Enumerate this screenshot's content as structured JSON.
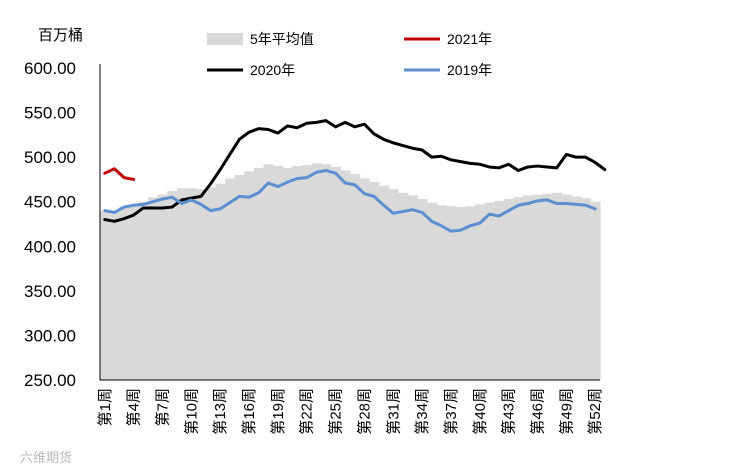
{
  "chart_data": {
    "type": "line",
    "unit_label": "百万桶",
    "ylim": [
      250,
      600
    ],
    "yticks": [
      "250.00",
      "300.00",
      "350.00",
      "400.00",
      "450.00",
      "500.00",
      "550.00",
      "600.00"
    ],
    "x_tick_labels": [
      "第1周",
      "第4周",
      "第7周",
      "第10周",
      "第13周",
      "第16周",
      "第19周",
      "第22周",
      "第25周",
      "第28周",
      "第31周",
      "第34周",
      "第37周",
      "第40周",
      "第43周",
      "第46周",
      "第49周",
      "第52周"
    ],
    "weeks": 52,
    "colors": {
      "avg5": "#d9d9d9",
      "y2021": "#c00000",
      "y2020": "#000000",
      "y2019": "#5b8fd1"
    },
    "series": [
      {
        "key": "avg5",
        "name": "5年平均值",
        "kind": "area",
        "values": [
          440,
          438,
          444,
          446,
          450,
          455,
          458,
          462,
          465,
          465,
          464,
          466,
          470,
          476,
          480,
          484,
          488,
          492,
          490,
          488,
          490,
          491,
          493,
          492,
          489,
          485,
          481,
          476,
          472,
          468,
          464,
          460,
          457,
          453,
          449,
          446,
          445,
          444,
          445,
          447,
          449,
          451,
          453,
          455,
          457,
          458,
          459,
          460,
          458,
          456,
          454,
          450
        ]
      },
      {
        "key": "y2021",
        "name": "2021年",
        "kind": "line",
        "values": [
          482,
          487,
          477,
          475
        ]
      },
      {
        "key": "y2020",
        "name": "2020年",
        "kind": "line",
        "values": [
          430,
          428,
          431,
          435,
          443,
          443,
          443,
          444,
          452,
          454,
          456,
          470,
          486,
          503,
          520,
          528,
          532,
          531,
          527,
          535,
          533,
          538,
          539,
          541,
          534,
          539,
          534,
          537,
          526,
          520,
          516,
          513,
          510,
          508,
          500,
          501,
          497,
          495,
          493,
          492,
          489,
          488,
          492,
          485,
          489,
          490,
          489,
          488,
          503,
          500,
          500,
          494,
          486
        ]
      },
      {
        "key": "y2019",
        "name": "2019年",
        "kind": "line",
        "values": [
          440,
          438,
          444,
          446,
          447,
          450,
          453,
          455,
          448,
          452,
          447,
          440,
          442,
          449,
          456,
          455,
          460,
          471,
          467,
          472,
          476,
          477,
          483,
          485,
          482,
          471,
          469,
          459,
          456,
          446,
          437,
          439,
          441,
          438,
          428,
          423,
          417,
          418,
          423,
          426,
          436,
          434,
          440,
          446,
          448,
          451,
          452,
          448,
          448,
          447,
          446,
          442
        ]
      }
    ],
    "legend": {
      "avg5": "5年平均值",
      "y2021": "2021年",
      "y2020": "2020年",
      "y2019": "2019年"
    },
    "watermark": "六维期货"
  }
}
